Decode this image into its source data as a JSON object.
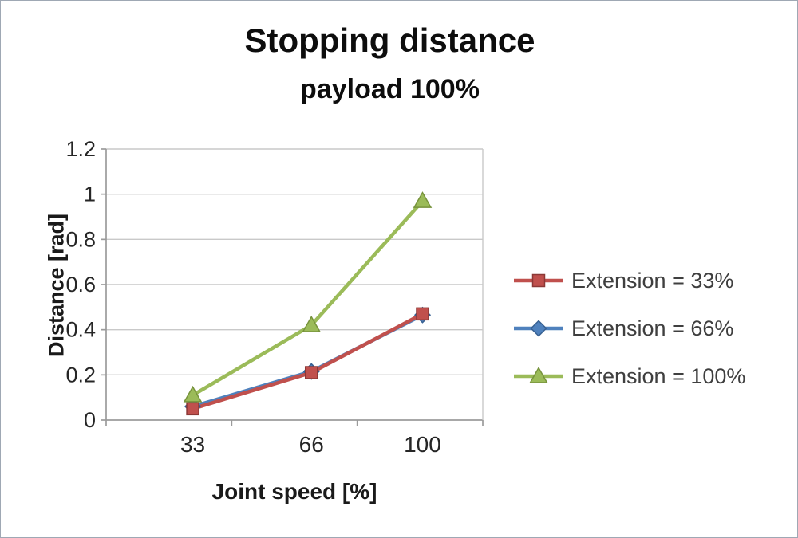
{
  "chart_data": {
    "type": "line",
    "title": "Stopping distance",
    "subtitle": "payload 100%",
    "xlabel": "Joint speed [%]",
    "ylabel": "Distance [rad]",
    "categories": [
      "33",
      "66",
      "100"
    ],
    "ylim": [
      0,
      1.2
    ],
    "ytick_step": 0.2,
    "yticks": [
      "0",
      "0.2",
      "0.4",
      "0.6",
      "0.8",
      "1",
      "1.2"
    ],
    "grid": true,
    "legend_position": "right",
    "series": [
      {
        "name": "Extension = 33%",
        "marker": "square",
        "color": "#c0504d",
        "edge": "#8c3836",
        "values": [
          0.05,
          0.21,
          0.47
        ]
      },
      {
        "name": "Extension = 66%",
        "marker": "diamond",
        "color": "#4f81bd",
        "edge": "#376092",
        "values": [
          0.06,
          0.215,
          0.465
        ]
      },
      {
        "name": "Extension = 100%",
        "marker": "triangle",
        "color": "#9bbb59",
        "edge": "#77933c",
        "values": [
          0.11,
          0.42,
          0.97
        ]
      }
    ]
  }
}
